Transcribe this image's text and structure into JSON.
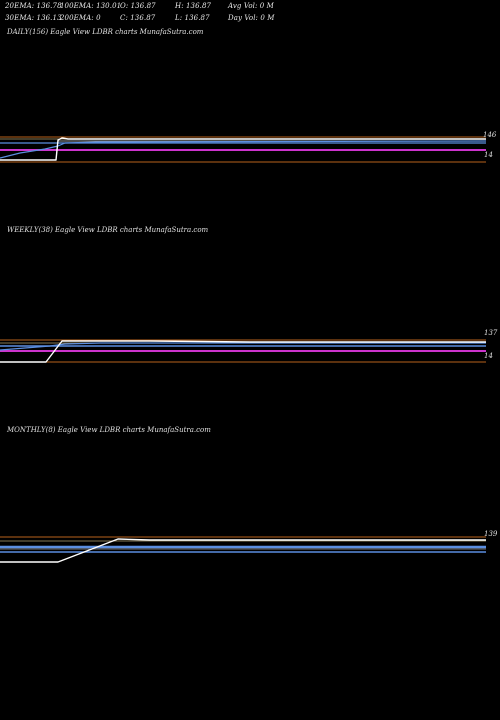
{
  "header": {
    "row1": {
      "ema20": "20EMA: 136.78",
      "ema100": "100EMA: 130.01",
      "open": "O: 136.87",
      "high": "H: 136.87",
      "avg_vol": "Avg Vol: 0  M"
    },
    "row2": {
      "ema30": "30EMA: 136.13",
      "ema200": "200EMA: 0",
      "close": "C: 136.87",
      "low": "L: 136.87",
      "day_vol": "Day Vol: 0  M"
    }
  },
  "colors": {
    "background": "#000000",
    "price": "#ffffff",
    "ema_blue": "#5b8ee0",
    "magenta": "#cc33cc",
    "orange_line": "#b8621b",
    "grey_line": "#9a9a9a",
    "tan_line": "#b0a070",
    "label": "#e0e0e0"
  },
  "chart_data": [
    {
      "type": "line",
      "label": "DAILY(156) Eagle   View  LDBR charts MunafaSutra.com",
      "y_tick_labels": [
        "146",
        "14"
      ],
      "price_series": {
        "start_value": 128.0,
        "jump_to": 136.9,
        "end_value": 136.87
      }
    },
    {
      "type": "line",
      "label": "WEEKLY(38) Eagle   View  LDBR charts MunafaSutra.com",
      "y_tick_labels": [
        "137",
        "14"
      ],
      "price_series": {
        "start_value": 127.5,
        "jump_to": 137.0,
        "end_value": 136.87
      }
    },
    {
      "type": "line",
      "label": "MONTHLY(8) Eagle   View  LDBR charts MunafaSutra.com",
      "y_tick_labels": [
        "139"
      ],
      "price_series": {
        "start_value": 126.0,
        "jump_to": 137.0,
        "end_value": 136.87
      }
    }
  ]
}
